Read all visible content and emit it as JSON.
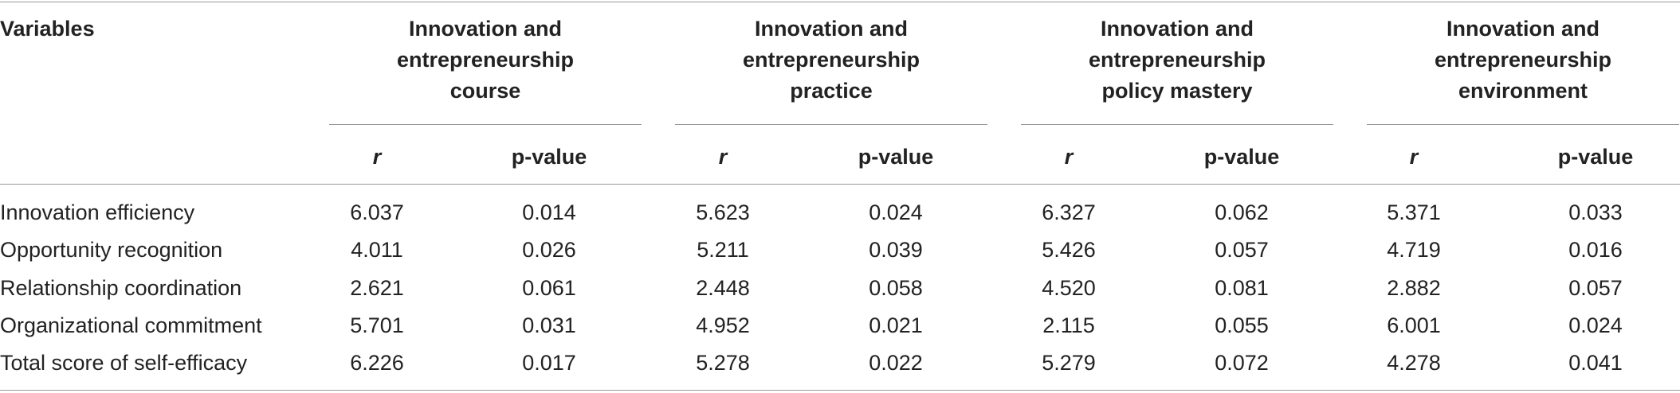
{
  "table": {
    "header": {
      "variables": "Variables",
      "groups": [
        {
          "title": "Innovation and entrepreneurship course",
          "columns": [
            "r",
            "p-value"
          ]
        },
        {
          "title": "Innovation and entrepreneurship practice",
          "columns": [
            "r",
            "p-value"
          ]
        },
        {
          "title": "Innovation and entrepreneurship policy mastery",
          "columns": [
            "r",
            "p-value"
          ]
        },
        {
          "title": "Innovation and entrepreneurship environment",
          "columns": [
            "r",
            "p-value"
          ]
        }
      ]
    },
    "rows": [
      {
        "label": "Innovation efficiency",
        "cells": [
          "6.037",
          "0.014",
          "5.623",
          "0.024",
          "6.327",
          "0.062",
          "5.371",
          "0.033"
        ]
      },
      {
        "label": "Opportunity recognition",
        "cells": [
          "4.011",
          "0.026",
          "5.211",
          "0.039",
          "5.426",
          "0.057",
          "4.719",
          "0.016"
        ]
      },
      {
        "label": "Relationship coordination",
        "cells": [
          "2.621",
          "0.061",
          "2.448",
          "0.058",
          "4.520",
          "0.081",
          "2.882",
          "0.057"
        ]
      },
      {
        "label": "Organizational commitment",
        "cells": [
          "5.701",
          "0.031",
          "4.952",
          "0.021",
          "2.115",
          "0.055",
          "6.001",
          "0.024"
        ]
      },
      {
        "label": "Total score of self-efficacy",
        "cells": [
          "6.226",
          "0.017",
          "5.278",
          "0.022",
          "5.279",
          "0.072",
          "4.278",
          "0.041"
        ]
      }
    ]
  }
}
